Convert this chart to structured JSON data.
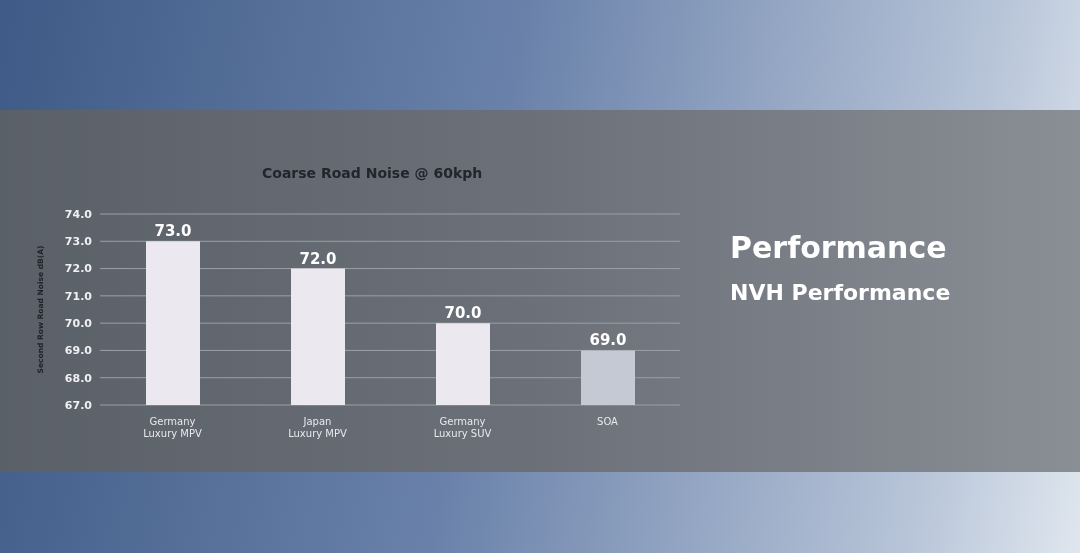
{
  "chart_data": {
    "type": "bar",
    "title": "Coarse Road Noise @ 60kph",
    "ylabel": "Second Row  Road Noise dB(A)",
    "categories": [
      "Germany\nLuxury MPV",
      "Japan\nLuxury  MPV",
      "Germany\nLuxury SUV",
      "SOA"
    ],
    "values": [
      73.0,
      72.0,
      70.0,
      69.0
    ],
    "colors": [
      "#ebe8f0",
      "#ebe8f0",
      "#ebe8f0",
      "#c5c9d4"
    ],
    "value_labels": [
      "73.0",
      "72.0",
      "70.0",
      "69.0"
    ],
    "ylim": [
      67,
      74
    ],
    "yticks": [
      {
        "value": 67,
        "label": "67.0"
      },
      {
        "value": 68,
        "label": "68.0"
      },
      {
        "value": 69,
        "label": "69.0"
      },
      {
        "value": 70,
        "label": "70.0"
      },
      {
        "value": 71,
        "label": "71.0"
      },
      {
        "value": 72,
        "label": "72.0"
      },
      {
        "value": 73,
        "label": "73.0"
      },
      {
        "value": 74,
        "label": "74.0"
      }
    ],
    "grid": "y",
    "annotations": [
      "Performance",
      "NVH Performance"
    ]
  }
}
